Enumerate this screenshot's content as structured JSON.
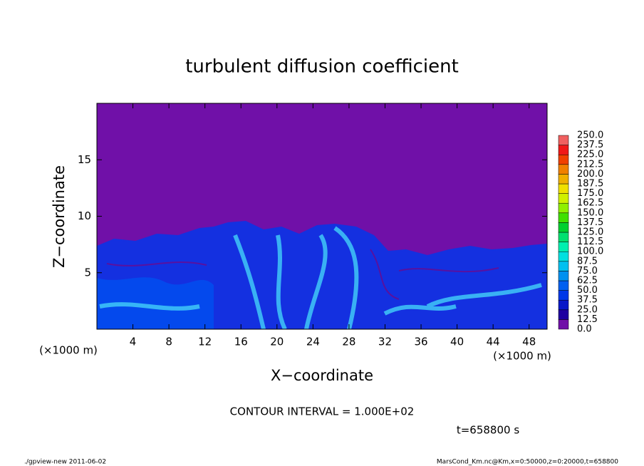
{
  "chart_data": {
    "type": "contour",
    "title": "turbulent diffusion coefficient",
    "xlabel": "X−coordinate",
    "ylabel": "Z−coordinate",
    "xunit": "(×1000 m)",
    "xlim": [
      0,
      50
    ],
    "ylim": [
      0,
      20
    ],
    "xticks": [
      4,
      8,
      12,
      16,
      20,
      24,
      28,
      32,
      36,
      40,
      44,
      48
    ],
    "yticks": [
      5,
      10,
      15
    ],
    "colorbar": {
      "levels": [
        {
          "value": 0,
          "label": "0.0"
        },
        {
          "value": 12.5,
          "label": "12.5"
        },
        {
          "value": 25,
          "label": "25.0"
        },
        {
          "value": 37.5,
          "label": "37.5"
        },
        {
          "value": 50,
          "label": "50.0"
        },
        {
          "value": 62.5,
          "label": "62.5"
        },
        {
          "value": 75,
          "label": "75.0"
        },
        {
          "value": 87.5,
          "label": "87.5"
        },
        {
          "value": 100,
          "label": "100.0"
        },
        {
          "value": 112.5,
          "label": "112.5"
        },
        {
          "value": 125,
          "label": "125.0"
        },
        {
          "value": 137.5,
          "label": "137.5"
        },
        {
          "value": 150,
          "label": "150.0"
        },
        {
          "value": 162.5,
          "label": "162.5"
        },
        {
          "value": 175,
          "label": "175.0"
        },
        {
          "value": 187.5,
          "label": "187.5"
        },
        {
          "value": 200,
          "label": "200.0"
        },
        {
          "value": 212.5,
          "label": "212.5"
        },
        {
          "value": 225,
          "label": "225.0"
        },
        {
          "value": 237.5,
          "label": "237.5"
        },
        {
          "value": 250,
          "label": "250.0"
        }
      ],
      "colors": [
        "#7010a8",
        "#2000a0",
        "#0818c8",
        "#0038e8",
        "#0060f0",
        "#0090f0",
        "#00c0f0",
        "#00e0e0",
        "#00f0b0",
        "#00e070",
        "#00d030",
        "#40e000",
        "#90f000",
        "#d0f000",
        "#f0e000",
        "#f0b000",
        "#f08000",
        "#f04000",
        "#f01818",
        "#f06060"
      ]
    },
    "contour_interval": "CONTOUR INTERVAL = 1.000E+02",
    "time": "t=658800 s",
    "footer_left": "./gpview-new  2011-06-02",
    "footer_right": "MarsCond_Km.nc@Km,x=0:50000,z=0:20000,t=658800"
  }
}
